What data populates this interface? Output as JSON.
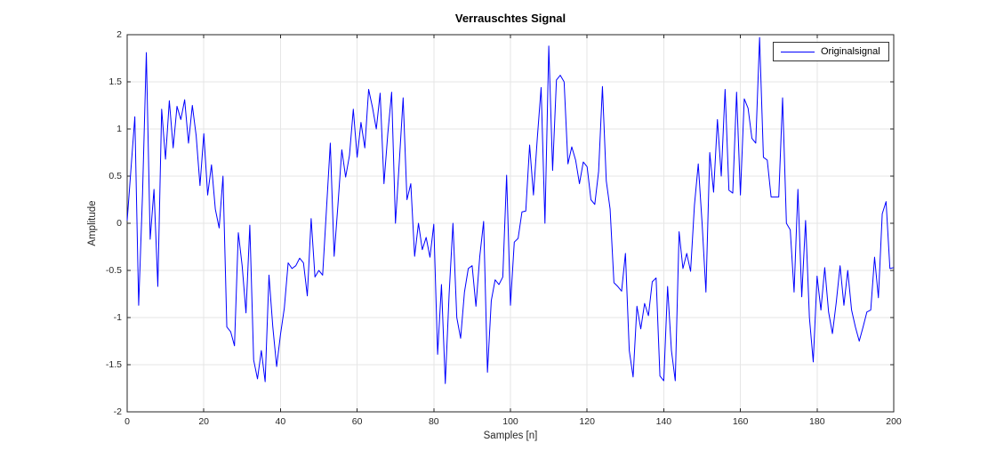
{
  "figure": {
    "title": "Verrauschtes Signal",
    "background": "#FFFFFF"
  },
  "legend": {
    "position": "top-right",
    "entries": [
      {
        "label": "Originalsignal",
        "color": "#0000FF"
      }
    ]
  },
  "colors": {
    "line": "#0000FF",
    "grid": "#E6E6E6",
    "axis": "#262626",
    "tick_text": "#262626",
    "title_text": "#000000",
    "background": "#FFFFFF"
  },
  "chart_data": {
    "type": "line",
    "title": "Verrauschtes Signal",
    "xlabel": "Samples [n]",
    "ylabel": "Amplitude",
    "xlim": [
      0,
      200
    ],
    "ylim": [
      -2,
      2
    ],
    "grid": true,
    "legend_position": "top-right",
    "xticks": {
      "values": [
        0,
        20,
        40,
        60,
        80,
        100,
        120,
        140,
        160,
        180,
        200
      ],
      "labels": [
        "0",
        "20",
        "40",
        "60",
        "80",
        "100",
        "120",
        "140",
        "160",
        "180",
        "200"
      ]
    },
    "yticks": {
      "values": [
        -2,
        -1.5,
        -1,
        -0.5,
        0,
        0.5,
        1,
        1.5,
        2
      ],
      "labels": [
        "-2",
        "-1.5",
        "-1",
        "-0.5",
        "0",
        "0.5",
        "1",
        "1.5",
        "2"
      ]
    },
    "series": [
      {
        "name": "Originalsignal",
        "color": "#0000FF",
        "x_start": 0,
        "x_step": 1,
        "values": [
          0.03,
          0.58,
          1.13,
          -0.87,
          0.3,
          1.81,
          -0.17,
          0.36,
          -0.67,
          1.21,
          0.68,
          1.3,
          0.8,
          1.24,
          1.1,
          1.31,
          0.85,
          1.25,
          0.93,
          0.4,
          0.95,
          0.3,
          0.62,
          0.15,
          -0.05,
          0.5,
          -1.1,
          -1.15,
          -1.3,
          -0.1,
          -0.45,
          -0.95,
          -0.02,
          -1.45,
          -1.65,
          -1.35,
          -1.68,
          -0.55,
          -1.1,
          -1.52,
          -1.18,
          -0.9,
          -0.42,
          -0.48,
          -0.45,
          -0.37,
          -0.42,
          -0.77,
          0.05,
          -0.57,
          -0.5,
          -0.55,
          0.15,
          0.85,
          -0.35,
          0.2,
          0.78,
          0.49,
          0.72,
          1.21,
          0.7,
          1.07,
          0.8,
          1.42,
          1.23,
          1.0,
          1.38,
          0.42,
          0.95,
          1.39,
          0.0,
          0.65,
          1.33,
          0.25,
          0.42,
          -0.35,
          0.0,
          -0.28,
          -0.15,
          -0.36,
          -0.01,
          -1.39,
          -0.65,
          -1.7,
          -0.75,
          0.0,
          -1.0,
          -1.22,
          -0.73,
          -0.48,
          -0.45,
          -0.88,
          -0.35,
          0.02,
          -1.58,
          -0.82,
          -0.6,
          -0.65,
          -0.57,
          0.51,
          -0.87,
          -0.2,
          -0.16,
          0.12,
          0.13,
          0.83,
          0.3,
          0.9,
          1.44,
          0.0,
          1.88,
          0.56,
          1.52,
          1.57,
          1.5,
          0.63,
          0.81,
          0.67,
          0.42,
          0.65,
          0.6,
          0.25,
          0.2,
          0.55,
          1.45,
          0.45,
          0.15,
          -0.63,
          -0.67,
          -0.72,
          -0.32,
          -1.35,
          -1.63,
          -0.88,
          -1.12,
          -0.85,
          -0.98,
          -0.62,
          -0.58,
          -1.62,
          -1.67,
          -0.67,
          -1.35,
          -1.67,
          -0.09,
          -0.48,
          -0.32,
          -0.51,
          0.19,
          0.63,
          0.0,
          -0.73,
          0.75,
          0.33,
          1.1,
          0.5,
          1.42,
          0.35,
          0.32,
          1.39,
          0.3,
          1.32,
          1.22,
          0.9,
          0.85,
          1.97,
          0.7,
          0.67,
          0.28,
          0.28,
          0.28,
          1.33,
          0.0,
          -0.07,
          -0.73,
          0.36,
          -0.78,
          0.03,
          -1.0,
          -1.47,
          -0.56,
          -0.92,
          -0.47,
          -0.94,
          -1.17,
          -0.84,
          -0.45,
          -0.87,
          -0.5,
          -0.92,
          -1.1,
          -1.25,
          -1.1,
          -0.94,
          -0.92,
          -0.36,
          -0.79,
          0.1,
          0.23,
          -0.48,
          -0.47
        ]
      }
    ]
  }
}
